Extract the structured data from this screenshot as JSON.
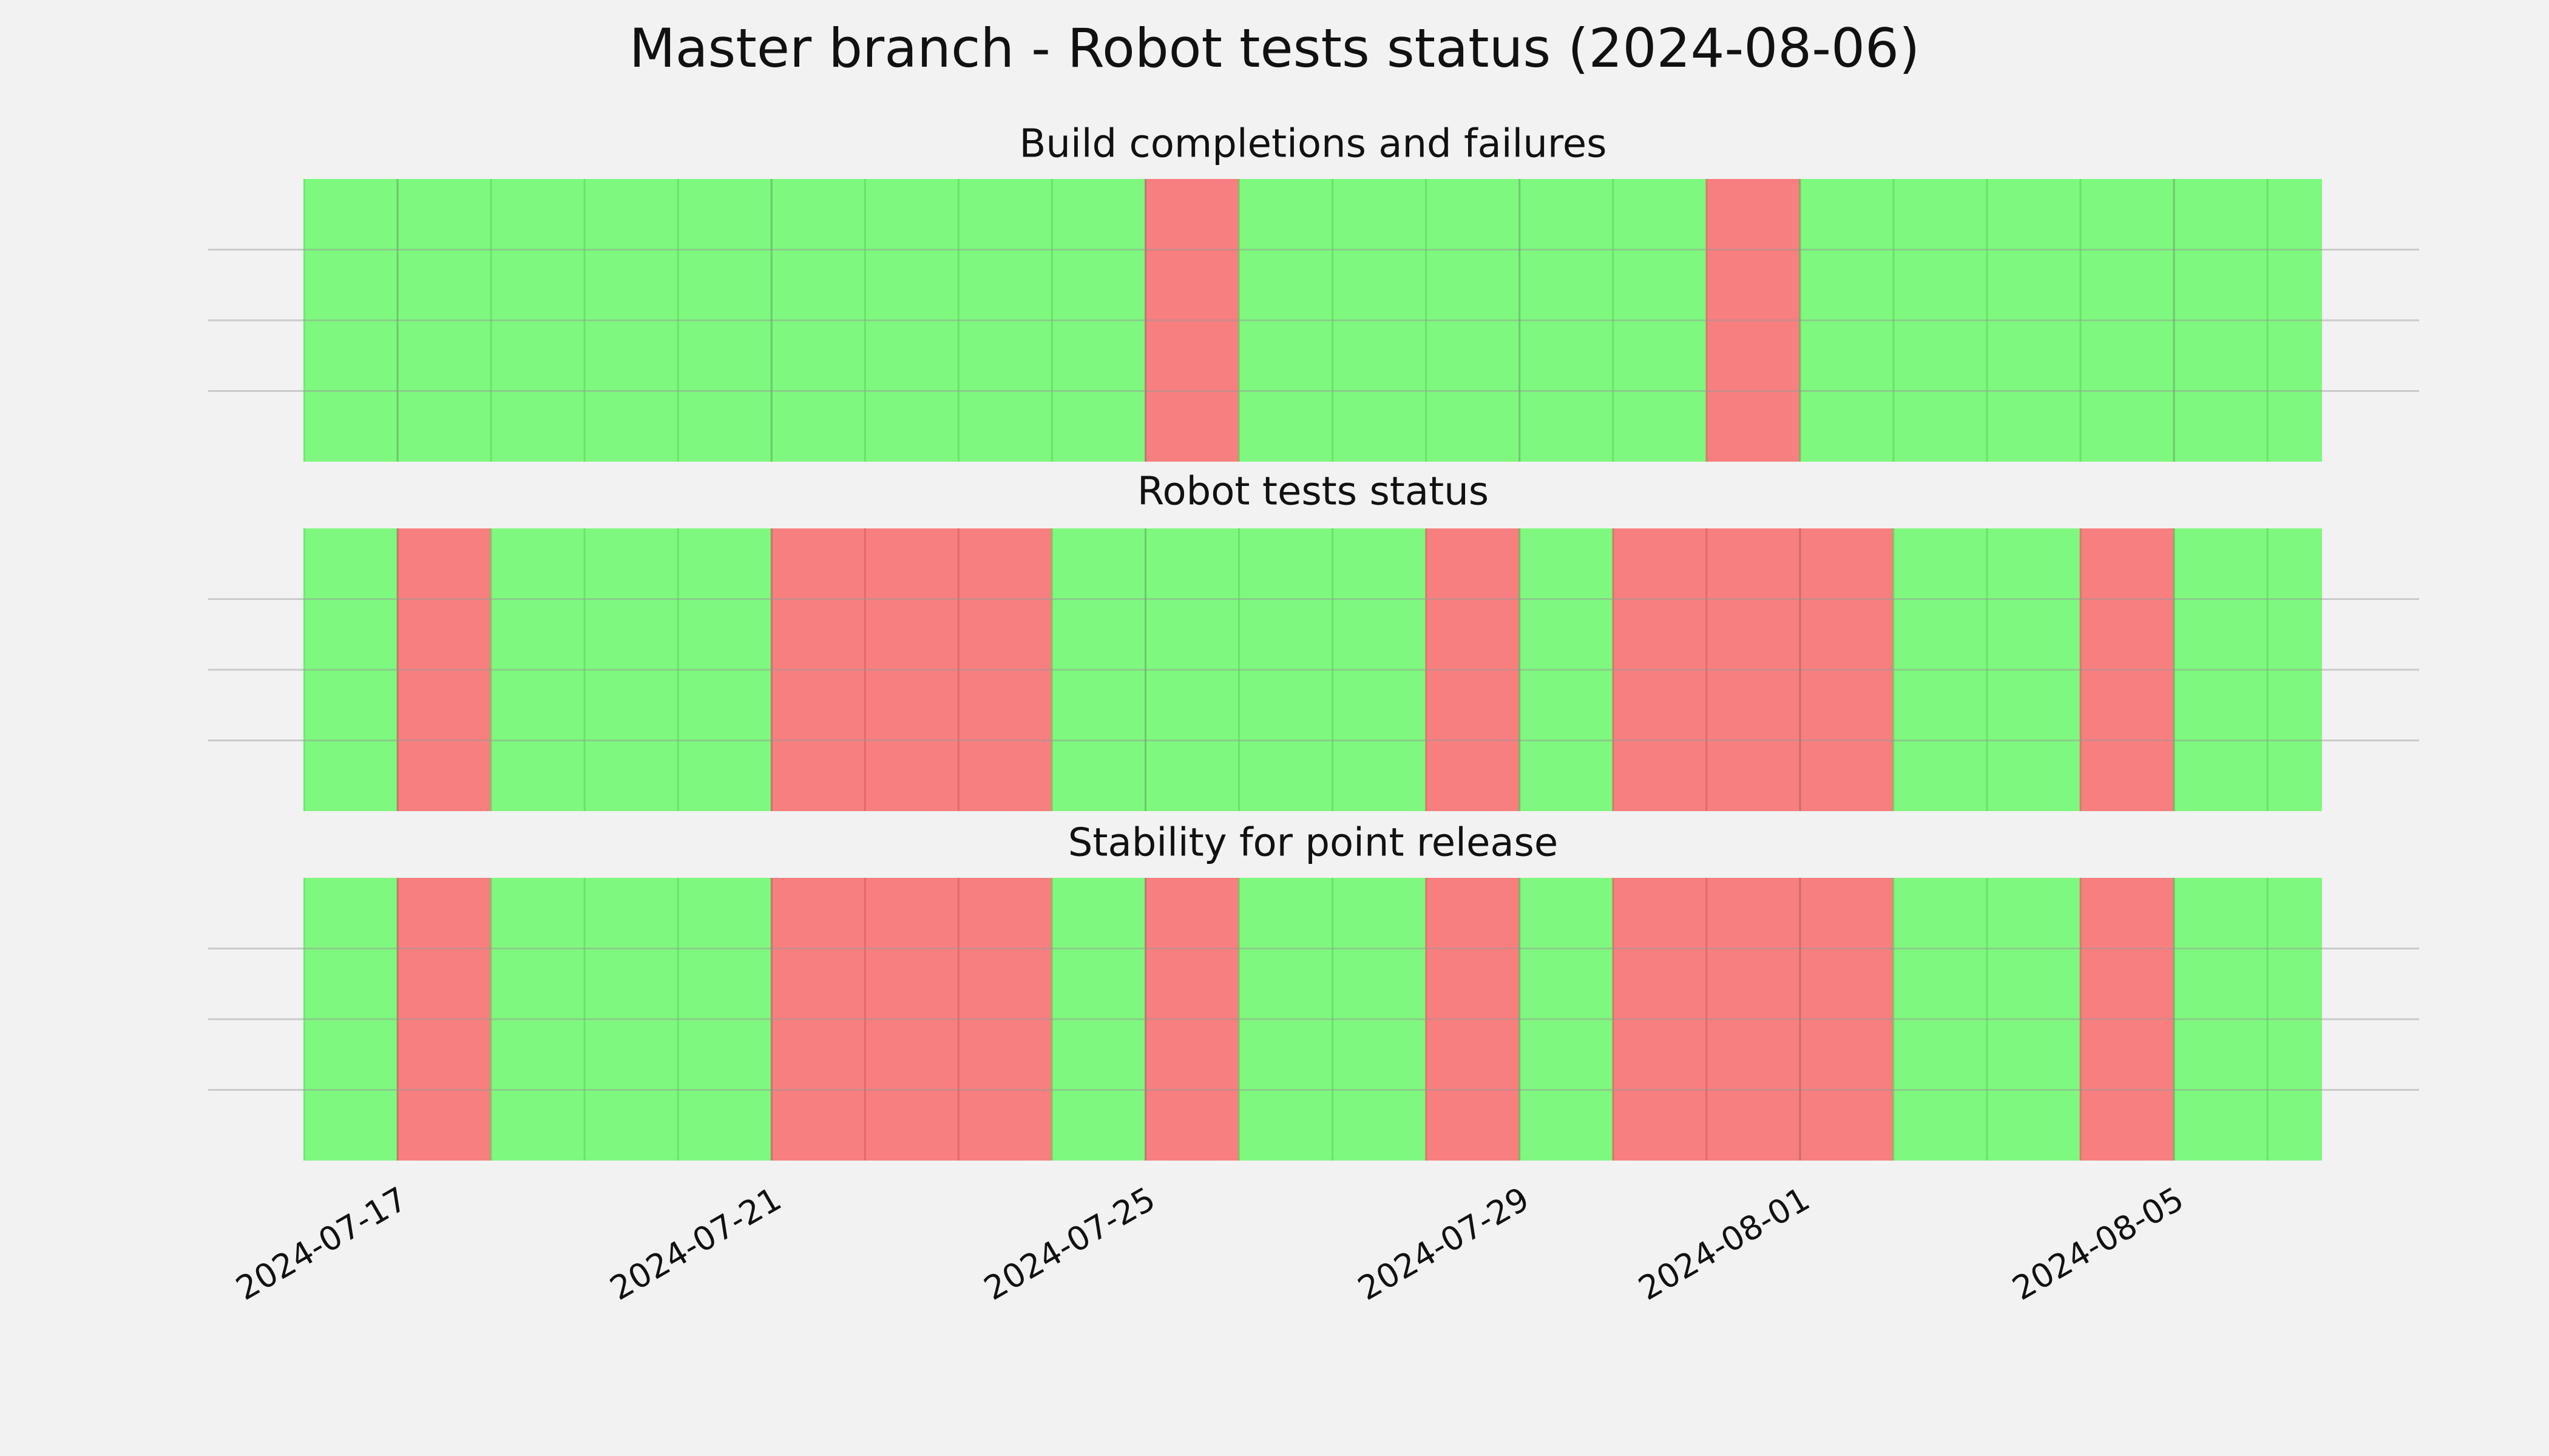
{
  "title": "Master branch - Robot tests status (2024-08-06)",
  "chart_data": [
    {
      "type": "timeline",
      "title": "Build completions and failures",
      "x": [
        "2024-07-16",
        "2024-07-17",
        "2024-07-18",
        "2024-07-19",
        "2024-07-20",
        "2024-07-21",
        "2024-07-22",
        "2024-07-23",
        "2024-07-24",
        "2024-07-25",
        "2024-07-26",
        "2024-07-27",
        "2024-07-28",
        "2024-07-29",
        "2024-07-30",
        "2024-07-31",
        "2024-08-01",
        "2024-08-02",
        "2024-08-03",
        "2024-08-04",
        "2024-08-05",
        "2024-08-06"
      ],
      "values": [
        1,
        1,
        1,
        1,
        1,
        1,
        1,
        1,
        1,
        0,
        1,
        1,
        1,
        1,
        1,
        0,
        1,
        1,
        1,
        1,
        1,
        1
      ],
      "colors": [
        "#f87878",
        "#78f878"
      ],
      "xlim": [
        "2024-07-16",
        "2024-08-06T14:00"
      ],
      "xticks": [
        "2024-07-17",
        "2024-07-21",
        "2024-07-25",
        "2024-07-29",
        "2024-08-01",
        "2024-08-05"
      ],
      "ylim": [
        0,
        1
      ],
      "yticks": [
        0.25,
        0.5,
        0.75
      ],
      "grid": true
    },
    {
      "type": "timeline",
      "title": "Robot tests status",
      "x": [
        "2024-07-16",
        "2024-07-17",
        "2024-07-18",
        "2024-07-19",
        "2024-07-20",
        "2024-07-21",
        "2024-07-22",
        "2024-07-23",
        "2024-07-24",
        "2024-07-25",
        "2024-07-26",
        "2024-07-27",
        "2024-07-28",
        "2024-07-29",
        "2024-07-30",
        "2024-07-31",
        "2024-08-01",
        "2024-08-02",
        "2024-08-03",
        "2024-08-04",
        "2024-08-05",
        "2024-08-06"
      ],
      "values": [
        1,
        0,
        1,
        1,
        1,
        0,
        0,
        0,
        1,
        1,
        1,
        1,
        0,
        1,
        0,
        0,
        0,
        1,
        1,
        0,
        1,
        1
      ],
      "colors": [
        "#f87878",
        "#78f878"
      ],
      "xlim": [
        "2024-07-16",
        "2024-08-06T14:00"
      ],
      "xticks": [
        "2024-07-17",
        "2024-07-21",
        "2024-07-25",
        "2024-07-29",
        "2024-08-01",
        "2024-08-05"
      ],
      "ylim": [
        0,
        1
      ],
      "yticks": [
        0.25,
        0.5,
        0.75
      ],
      "grid": true
    },
    {
      "type": "timeline",
      "title": "Stability for point release",
      "x": [
        "2024-07-16",
        "2024-07-17",
        "2024-07-18",
        "2024-07-19",
        "2024-07-20",
        "2024-07-21",
        "2024-07-22",
        "2024-07-23",
        "2024-07-24",
        "2024-07-25",
        "2024-07-26",
        "2024-07-27",
        "2024-07-28",
        "2024-07-29",
        "2024-07-30",
        "2024-07-31",
        "2024-08-01",
        "2024-08-02",
        "2024-08-03",
        "2024-08-04",
        "2024-08-05",
        "2024-08-06"
      ],
      "values": [
        1,
        0,
        1,
        1,
        1,
        0,
        0,
        0,
        1,
        0,
        1,
        1,
        0,
        1,
        0,
        0,
        0,
        1,
        1,
        0,
        1,
        1
      ],
      "colors": [
        "#f87878",
        "#78f878"
      ],
      "xlim": [
        "2024-07-16",
        "2024-08-06T14:00"
      ],
      "xticks": [
        "2024-07-17",
        "2024-07-21",
        "2024-07-25",
        "2024-07-29",
        "2024-08-01",
        "2024-08-05"
      ],
      "ylim": [
        0,
        1
      ],
      "yticks": [
        0.25,
        0.5,
        0.75
      ],
      "grid": true
    }
  ]
}
